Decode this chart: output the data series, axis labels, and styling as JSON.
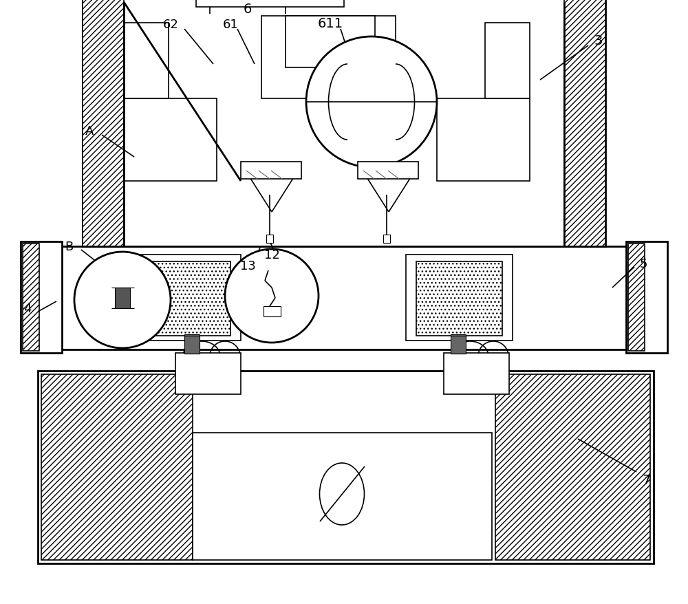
{
  "bg_color": "#ffffff",
  "lc": "#000000",
  "lw": 1.2,
  "lw2": 2.0,
  "figsize": [
    10.0,
    8.79
  ],
  "dpi": 100
}
